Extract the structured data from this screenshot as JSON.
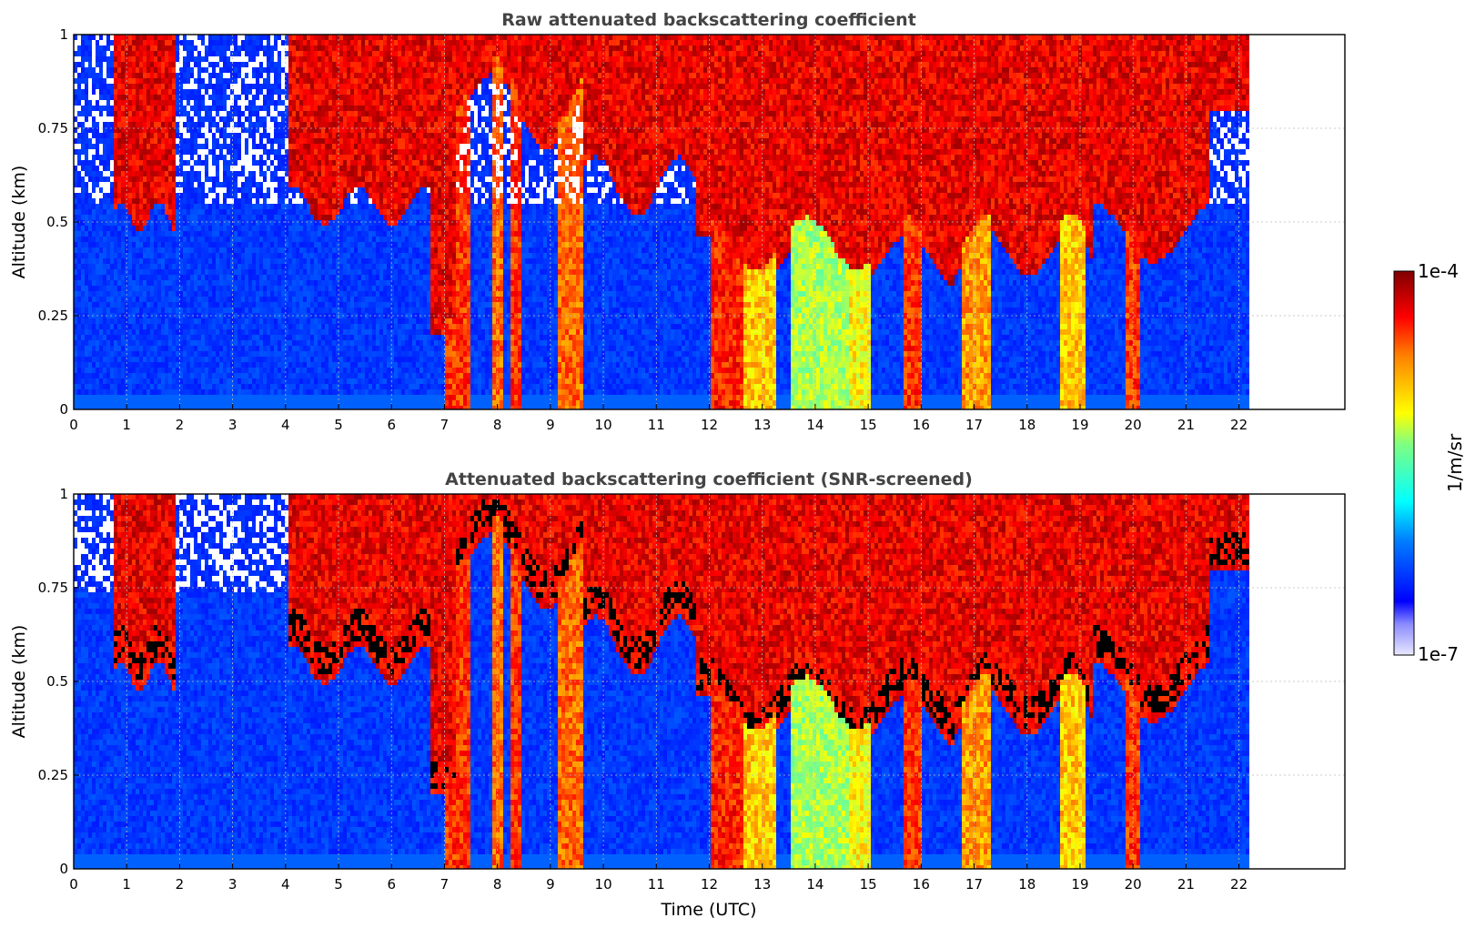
{
  "chart_data": [
    {
      "type": "heatmap",
      "title": "Raw attenuated backscattering coefficient",
      "xlabel": "",
      "ylabel": "Altitude (km)",
      "xlim": [
        0,
        24
      ],
      "ylim": [
        0,
        1
      ],
      "x_ticks": [
        "0",
        "1",
        "2",
        "3",
        "4",
        "5",
        "6",
        "7",
        "8",
        "9",
        "10",
        "11",
        "12",
        "13",
        "14",
        "15",
        "16",
        "17",
        "18",
        "19",
        "20",
        "21",
        "22"
      ],
      "y_ticks": [
        "0",
        "0.25",
        "0.5",
        "0.75",
        "1"
      ],
      "data_extent_hours": [
        0,
        22.2
      ],
      "grid": true,
      "screened": false
    },
    {
      "type": "heatmap",
      "title": "Attenuated backscattering coefficient (SNR-screened)",
      "xlabel": "Time (UTC)",
      "ylabel": "Altitude (km)",
      "xlim": [
        0,
        24
      ],
      "ylim": [
        0,
        1
      ],
      "x_ticks": [
        "0",
        "1",
        "2",
        "3",
        "4",
        "5",
        "6",
        "7",
        "8",
        "9",
        "10",
        "11",
        "12",
        "13",
        "14",
        "15",
        "16",
        "17",
        "18",
        "19",
        "20",
        "21",
        "22"
      ],
      "y_ticks": [
        "0",
        "0.25",
        "0.5",
        "0.75",
        "1"
      ],
      "data_extent_hours": [
        0,
        22.2
      ],
      "grid": true,
      "screened": true
    }
  ],
  "colorbar": {
    "label": "1/m/sr",
    "max_label": "1e-4",
    "min_label": "1e-7",
    "colormap": "jet",
    "scale": "log"
  }
}
